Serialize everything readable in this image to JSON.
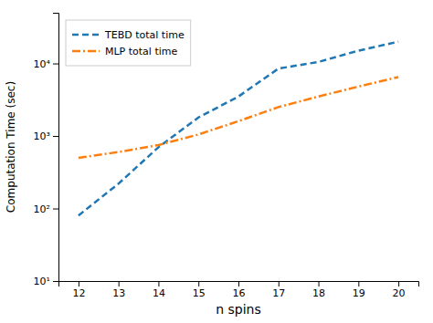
{
  "chart_data": {
    "type": "line",
    "x": [
      12,
      13,
      14,
      15,
      16,
      17,
      18,
      19,
      20
    ],
    "series": [
      {
        "name": "TEBD total time",
        "color": "#1f77b4",
        "line_style": "dashed",
        "values": [
          80,
          220,
          700,
          1800,
          3500,
          8500,
          10500,
          15000,
          20000
        ]
      },
      {
        "name": "MLP total time",
        "color": "#ff7f0e",
        "line_style": "dashdot",
        "values": [
          500,
          600,
          750,
          1050,
          1600,
          2500,
          3500,
          4800,
          6500
        ]
      }
    ],
    "xlabel": "n spins",
    "ylabel": "Computation Time (sec)",
    "xlim": [
      11.5,
      20.5
    ],
    "xticks": [
      12,
      13,
      14,
      15,
      16,
      17,
      18,
      19,
      20
    ],
    "ylim": [
      10,
      50000
    ],
    "yticks": [
      {
        "value": 10,
        "label": "10¹"
      },
      {
        "value": 100,
        "label": "10²"
      },
      {
        "value": 1000,
        "label": "10³"
      },
      {
        "value": 10000,
        "label": "10⁴"
      }
    ],
    "log": "y",
    "legend": "upper left"
  }
}
